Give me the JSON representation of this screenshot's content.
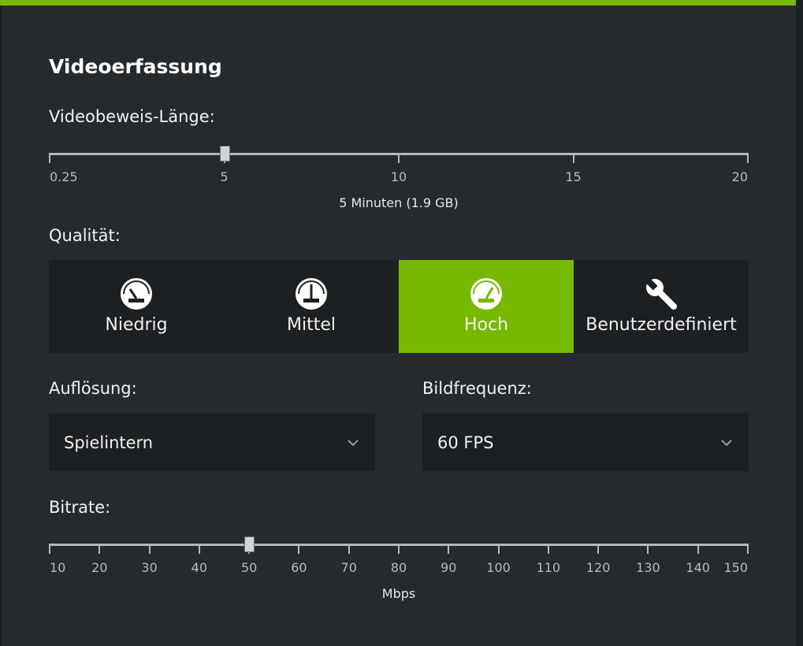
{
  "colors": {
    "accent": "#76b900",
    "panel": "#252a2e",
    "control": "#1d2023"
  },
  "section_title": "Videoerfassung",
  "replay_length": {
    "label": "Videobeweis-Länge:",
    "ticks": [
      "0.25",
      "5",
      "10",
      "15",
      "20"
    ],
    "min": 0.25,
    "max": 20,
    "value": 5,
    "caption": "5 Minuten (1.9 GB)"
  },
  "quality": {
    "label": "Qualität:",
    "options": [
      {
        "label": "Niedrig",
        "icon": "gauge-low-icon"
      },
      {
        "label": "Mittel",
        "icon": "gauge-medium-icon"
      },
      {
        "label": "Hoch",
        "icon": "gauge-high-icon"
      },
      {
        "label": "Benutzerdefiniert",
        "icon": "wrench-icon"
      }
    ],
    "selected": "Hoch"
  },
  "resolution": {
    "label": "Auflösung:",
    "value": "Spielintern"
  },
  "framerate": {
    "label": "Bildfrequenz:",
    "value": "60 FPS"
  },
  "bitrate": {
    "label": "Bitrate:",
    "ticks": [
      "10",
      "20",
      "30",
      "40",
      "50",
      "60",
      "70",
      "80",
      "90",
      "100",
      "110",
      "120",
      "130",
      "140",
      "150"
    ],
    "min": 10,
    "max": 150,
    "value": 50,
    "caption": "Mbps"
  }
}
